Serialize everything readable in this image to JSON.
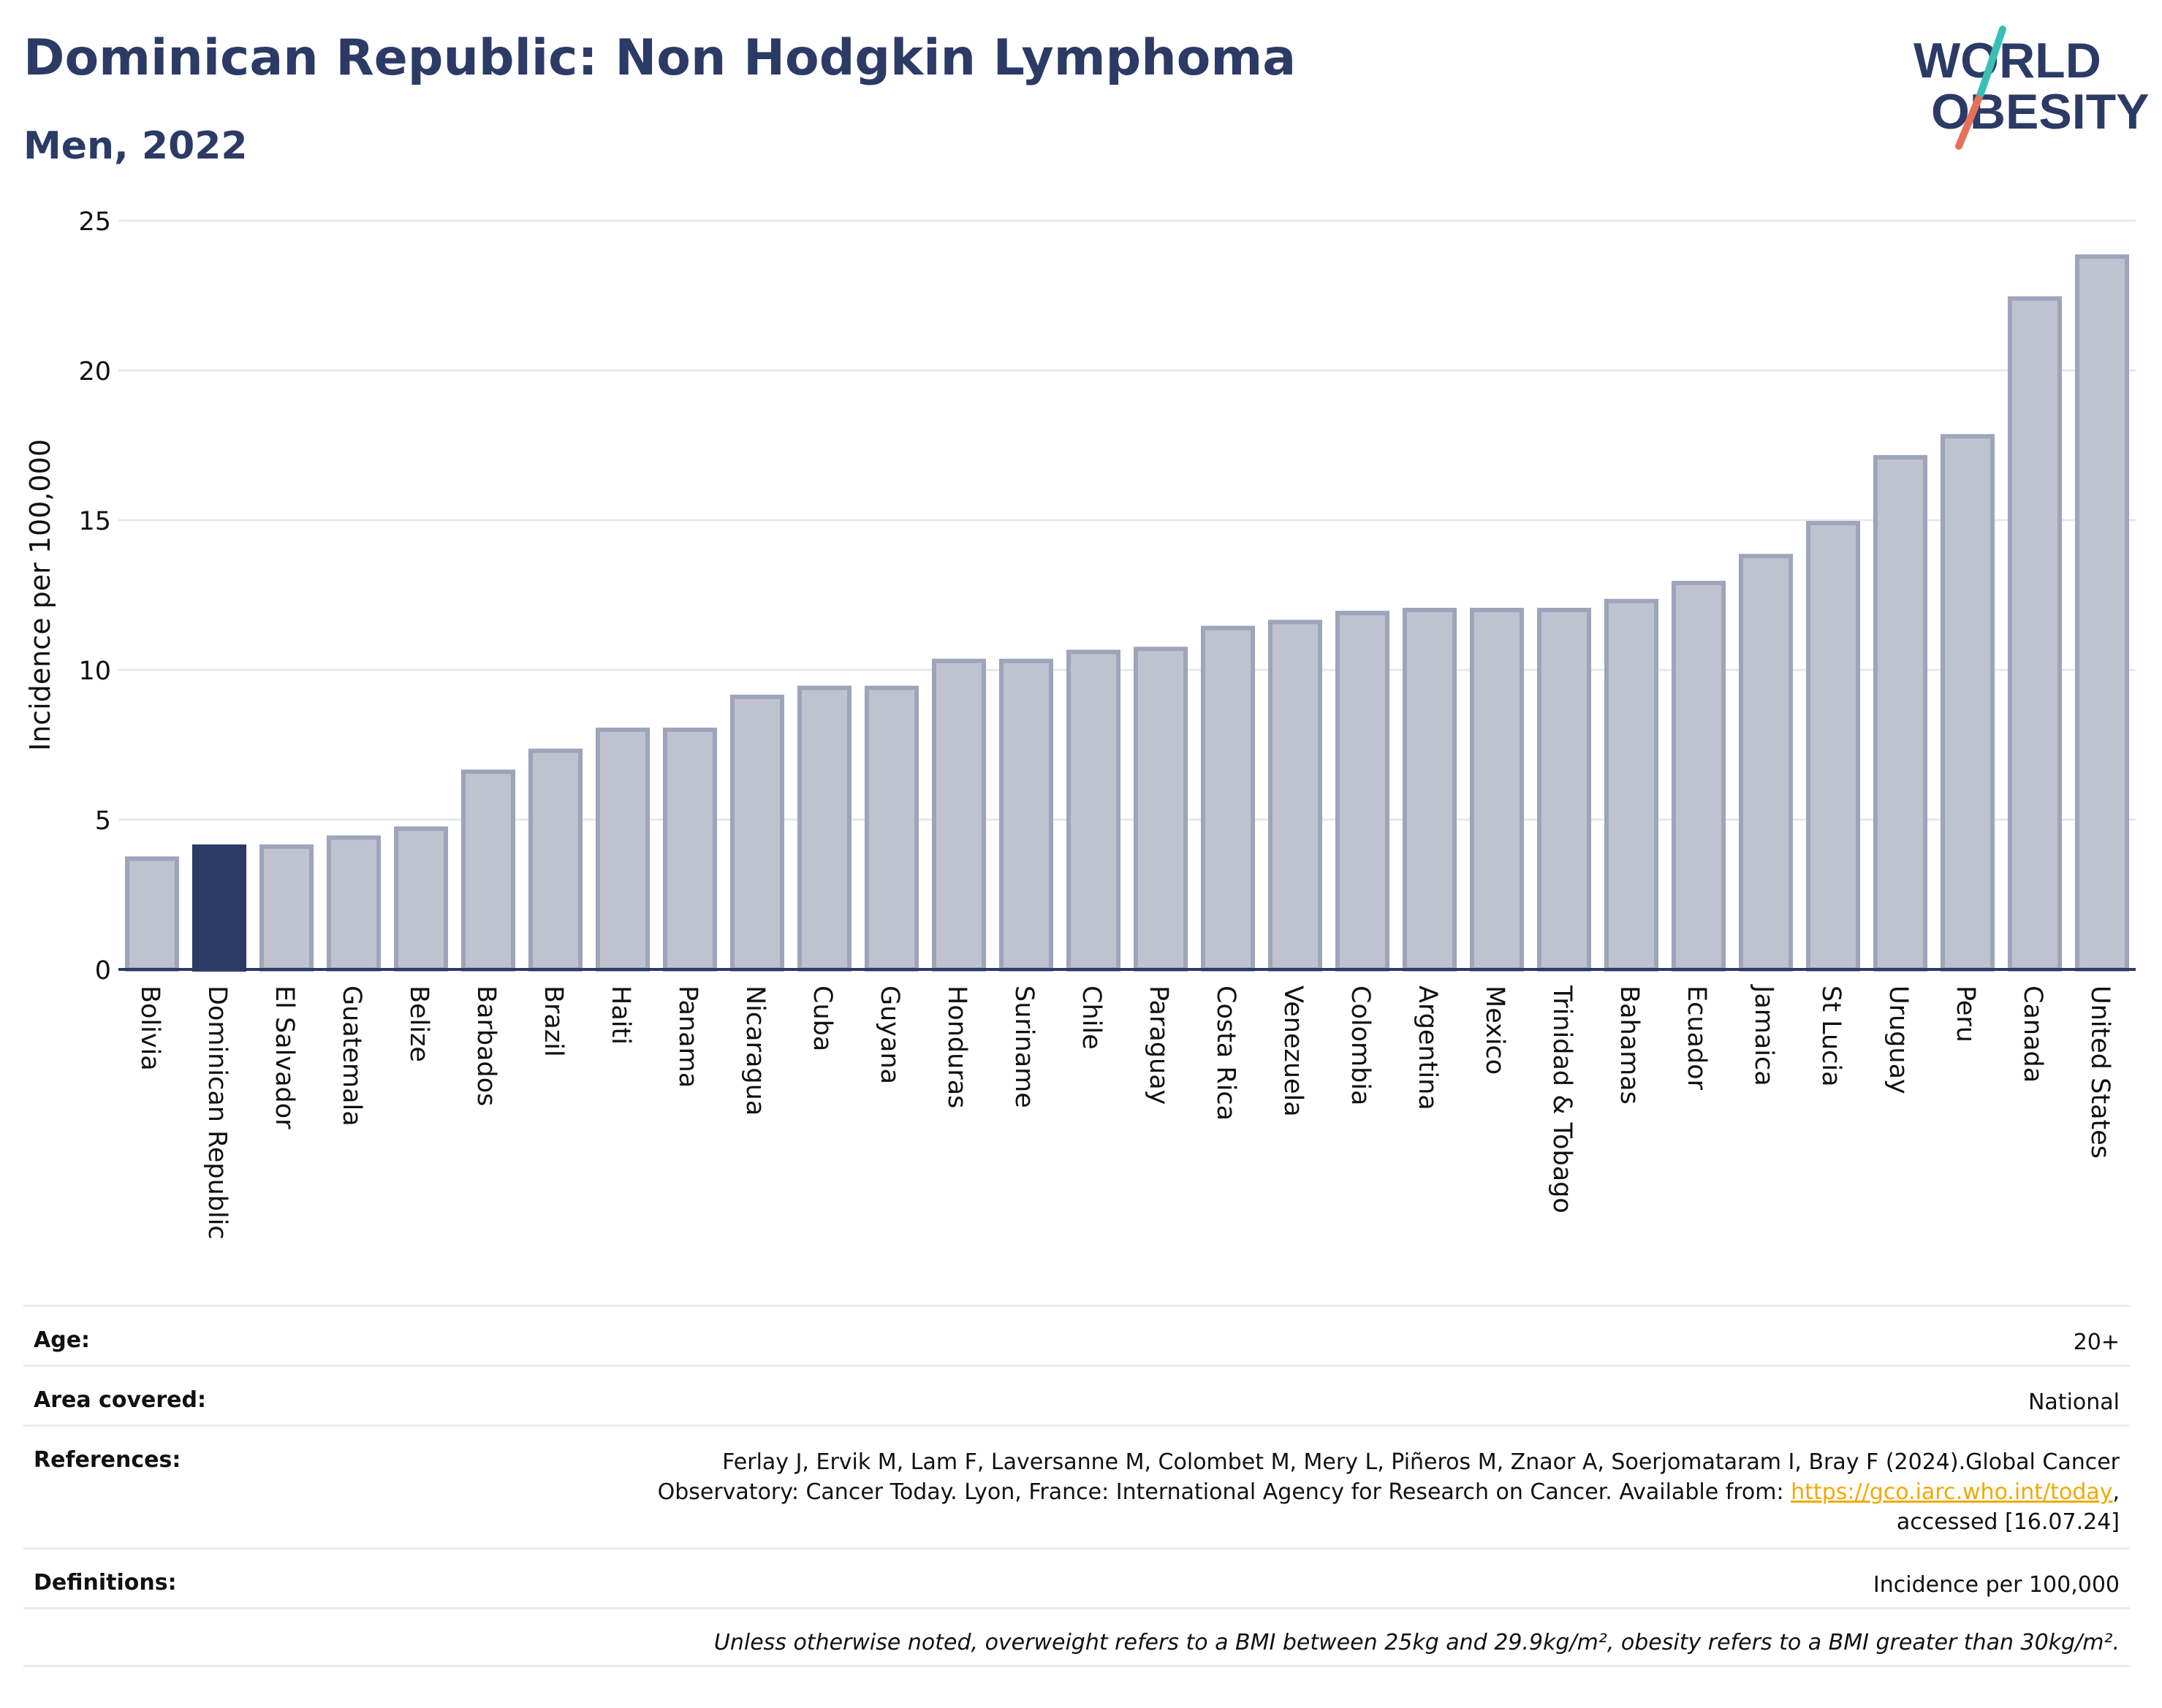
{
  "header": {
    "title": "Dominican Republic: Non Hodgkin Lymphoma",
    "subtitle": "Men, 2022"
  },
  "logo": {
    "line1": "WORLD",
    "line2": "OBESITY",
    "text_color": "#2c3a66",
    "slash_colors": [
      "#3bbfb5",
      "#e8705a"
    ]
  },
  "chart_data": {
    "type": "bar",
    "ylabel": "Incidence per 100,000",
    "ylim": [
      0,
      25
    ],
    "yticks": [
      0,
      5,
      10,
      15,
      20,
      25
    ],
    "grid": true,
    "highlight": "Dominican Republic",
    "colors": {
      "bar_fill": "#bfc3d0",
      "bar_stroke": "#9ea4ba",
      "highlight_fill": "#2c3a66",
      "grid": "#e6e8ee",
      "axis": "#2c3a66"
    },
    "categories": [
      "Bolivia",
      "Dominican Republic",
      "El Salvador",
      "Guatemala",
      "Belize",
      "Barbados",
      "Brazil",
      "Haiti",
      "Panama",
      "Nicaragua",
      "Cuba",
      "Guyana",
      "Honduras",
      "Suriname",
      "Chile",
      "Paraguay",
      "Costa Rica",
      "Venezuela",
      "Colombia",
      "Argentina",
      "Mexico",
      "Trinidad & Tobago",
      "Bahamas",
      "Ecuador",
      "Jamaica",
      "St Lucia",
      "Uruguay",
      "Peru",
      "Canada",
      "United States"
    ],
    "values": [
      3.7,
      4.1,
      4.1,
      4.4,
      4.7,
      6.6,
      7.3,
      8.0,
      8.0,
      9.1,
      9.4,
      9.4,
      10.3,
      10.3,
      10.6,
      10.7,
      11.4,
      11.6,
      11.9,
      12.0,
      12.0,
      12.0,
      12.3,
      12.9,
      13.8,
      14.9,
      17.1,
      17.8,
      22.4,
      23.8
    ]
  },
  "meta": {
    "age_label": "Age:",
    "age_value": "20+",
    "area_label": "Area covered:",
    "area_value": "National",
    "references_label": "References:",
    "references_line1": "Ferlay J, Ervik M, Lam F, Laversanne M, Colombet M, Mery L, Piñeros M, Znaor A, Soerjomataram I, Bray F (2024).Global Cancer",
    "references_line2_prefix": "Observatory: Cancer Today. Lyon, France: International Agency for Research on Cancer. Available from: ",
    "references_link": "https://gco.iarc.who.int/today",
    "references_line2_suffix": ",",
    "references_line3": "accessed [16.07.24]",
    "definitions_label": "Definitions:",
    "definitions_value": "Incidence per 100,000",
    "note": "Unless otherwise noted, overweight refers to a BMI between 25kg and 29.9kg/m², obesity refers to a BMI greater than 30kg/m²."
  }
}
